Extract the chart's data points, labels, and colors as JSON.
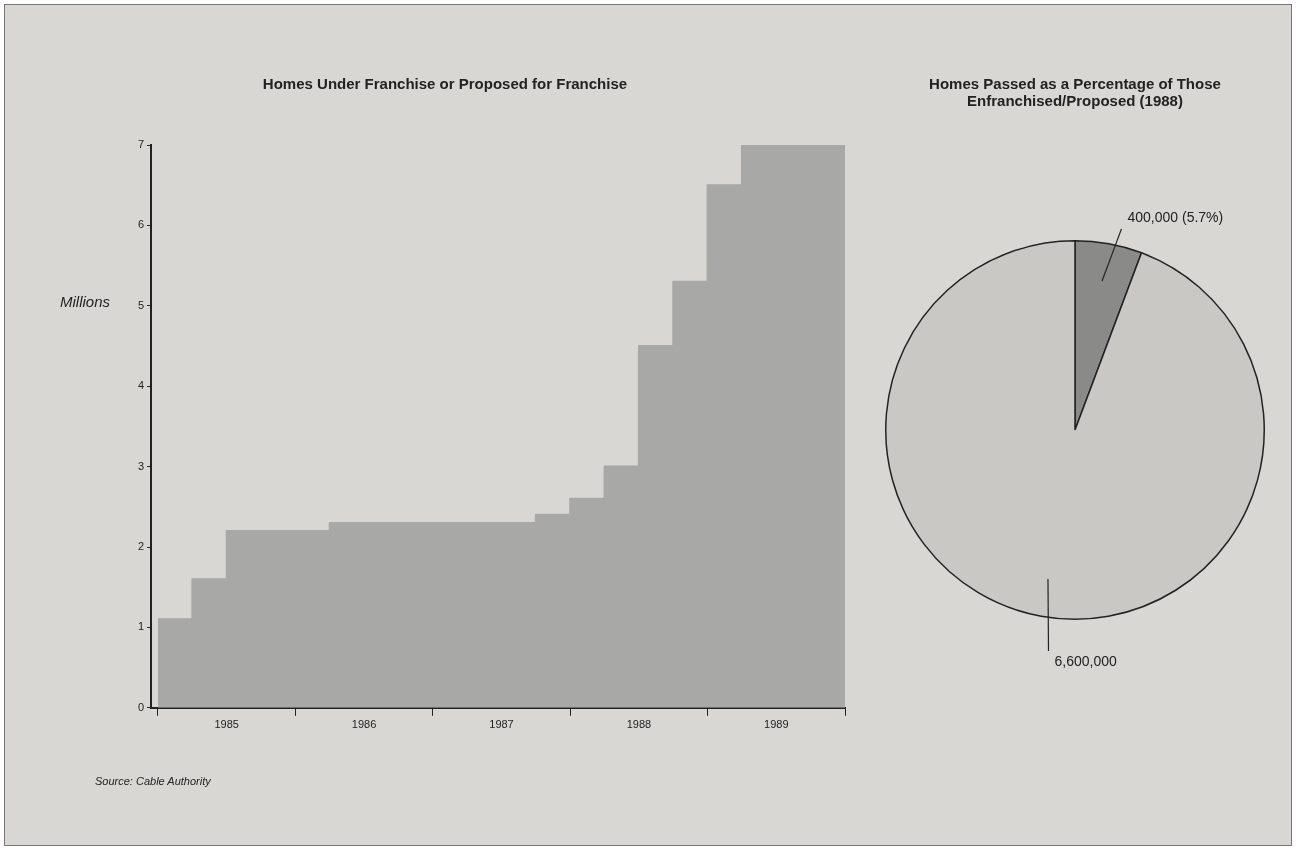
{
  "chart_data": [
    {
      "type": "area",
      "title": "Homes Under Franchise or Proposed for Franchise",
      "ylabel": "Millions",
      "x": [
        1985,
        1985.25,
        1985.25,
        1985.5,
        1985.5,
        1986.25,
        1986.25,
        1987.75,
        1987.75,
        1988,
        1988,
        1988.25,
        1988.25,
        1988.5,
        1988.5,
        1988.75,
        1988.75,
        1989,
        1989,
        1989.25,
        1989.25,
        1990
      ],
      "values": [
        1.1,
        1.1,
        1.6,
        1.6,
        2.2,
        2.2,
        2.3,
        2.3,
        2.4,
        2.4,
        2.6,
        2.6,
        3.0,
        3.0,
        4.5,
        4.5,
        5.3,
        5.3,
        6.5,
        6.5,
        7.0,
        7.0
      ],
      "color": "#a8a8a6",
      "xlim": [
        1984.95,
        1990
      ],
      "xticks": [
        {
          "value": 1985,
          "label": null
        },
        {
          "value": 1985.5,
          "label": "1985"
        },
        {
          "value": 1986,
          "label": null
        },
        {
          "value": 1986.5,
          "label": "1986"
        },
        {
          "value": 1987,
          "label": null
        },
        {
          "value": 1987.5,
          "label": "1987"
        },
        {
          "value": 1988,
          "label": null
        },
        {
          "value": 1988.5,
          "label": "1988"
        },
        {
          "value": 1989,
          "label": null
        },
        {
          "value": 1989.5,
          "label": "1989"
        },
        {
          "value": 1990,
          "label": null
        }
      ],
      "ylim": [
        0,
        7
      ],
      "yticks": [
        0,
        1,
        2,
        3,
        4,
        5,
        6,
        7
      ],
      "grid": false,
      "legend": false,
      "annotations": [
        "Source: Cable Authority"
      ]
    },
    {
      "type": "pie",
      "title": "Homes Passed as a Percentage of Those Enfranchised/Proposed (1988)",
      "categories": [
        null,
        null
      ],
      "values": [
        400000,
        6600000
      ],
      "colors": [
        "#8a8a88",
        "#c9c8c4"
      ],
      "value_labels": [
        "400,000 (5.7%)",
        "6,600,000"
      ],
      "legend": false
    }
  ]
}
